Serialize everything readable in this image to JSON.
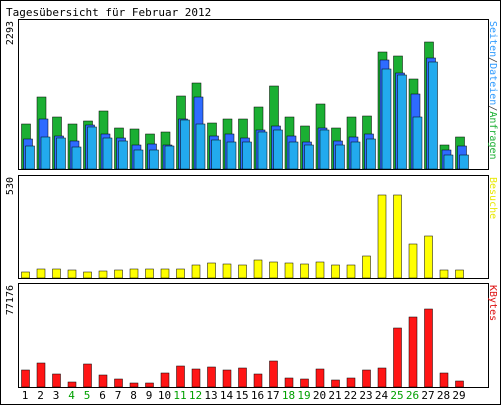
{
  "chart_data": {
    "title": "Tagesübersicht für Februar 2012",
    "type": "bar",
    "categories": [
      "1",
      "2",
      "3",
      "4",
      "5",
      "6",
      "7",
      "8",
      "9",
      "10",
      "11",
      "12",
      "13",
      "14",
      "15",
      "16",
      "17",
      "18",
      "19",
      "20",
      "21",
      "22",
      "23",
      "24",
      "25",
      "26",
      "27",
      "28",
      "29"
    ],
    "weekend_days": [
      "4",
      "5",
      "11",
      "12",
      "18",
      "19",
      "25",
      "26"
    ],
    "panels": [
      {
        "id": "requests",
        "ymax_label": "2293",
        "ymax": 2293,
        "right_label_parts": [
          {
            "text": "Seiten",
            "color": "#2E9AFE"
          },
          {
            "text": "/",
            "color": "#444444"
          },
          {
            "text": "Dateien",
            "color": "#2E9AFE"
          },
          {
            "text": "/",
            "color": "#444444"
          },
          {
            "text": "Anfragen",
            "color": "#1BAF33"
          }
        ],
        "series": [
          {
            "name": "Anfragen",
            "color": "#1BAF33",
            "values": [
              790,
              1270,
              920,
              800,
              840,
              1030,
              730,
              710,
              620,
              650,
              1290,
              1520,
              820,
              880,
              880,
              1100,
              1460,
              920,
              750,
              1140,
              730,
              920,
              930,
              2060,
              1990,
              1590,
              2240,
              420,
              560
            ]
          },
          {
            "name": "Dateien",
            "color": "#2E6BFF",
            "values": [
              530,
              890,
              580,
              500,
              780,
              620,
              540,
              430,
              440,
              420,
              880,
              1270,
              580,
              620,
              540,
              680,
              750,
              580,
              470,
              720,
              500,
              570,
              610,
              1920,
              1700,
              1330,
              1960,
              340,
              410
            ]
          },
          {
            "name": "Seiten",
            "color": "#22AAEE",
            "values": [
              400,
              560,
              550,
              390,
              740,
              540,
              500,
              330,
              330,
              410,
              860,
              790,
              520,
              480,
              470,
              650,
              690,
              480,
              430,
              690,
              430,
              480,
              530,
              1760,
              1660,
              920,
              1880,
              240,
              240
            ]
          }
        ]
      },
      {
        "id": "visits",
        "ymax_label": "530",
        "ymax": 530,
        "right_label_parts": [
          {
            "text": "Besuche",
            "color": "#E8E800"
          }
        ],
        "series": [
          {
            "name": "Besuche",
            "color": "#FFFF00",
            "values": [
              40,
              55,
              55,
              50,
              40,
              45,
              50,
              55,
              55,
              55,
              55,
              85,
              95,
              90,
              85,
              115,
              100,
              95,
              90,
              100,
              85,
              85,
              140,
              530,
              530,
              220,
              270,
              50,
              50
            ]
          }
        ]
      },
      {
        "id": "kbytes",
        "ymax_label": "77176",
        "ymax": 77176,
        "right_label_parts": [
          {
            "text": "KBytes",
            "color": "#DD1111"
          }
        ],
        "series": [
          {
            "name": "KBytes",
            "color": "#FF1515",
            "values": [
              16000,
              22500,
              11500,
              4500,
              21500,
              11000,
              7000,
              3500,
              3500,
              12500,
              19000,
              16500,
              18500,
              15500,
              17500,
              12000,
              23500,
              8500,
              7000,
              16500,
              6000,
              8500,
              16000,
              17500,
              54000,
              64500,
              72000,
              12500,
              5500
            ]
          }
        ]
      }
    ]
  }
}
